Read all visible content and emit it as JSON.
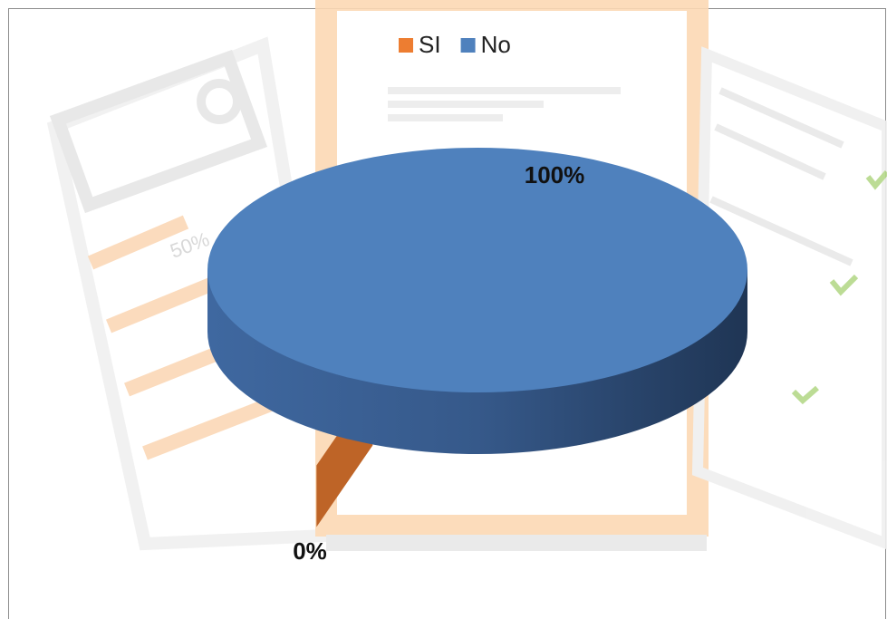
{
  "chart_data": {
    "type": "pie",
    "categories": [
      "SI",
      "No"
    ],
    "values": [
      0,
      100
    ],
    "value_labels": [
      "0%",
      "100%"
    ],
    "colors": [
      "#ed7d31",
      "#4f81bd"
    ],
    "legend": "top",
    "annotations": [
      "50%"
    ]
  }
}
